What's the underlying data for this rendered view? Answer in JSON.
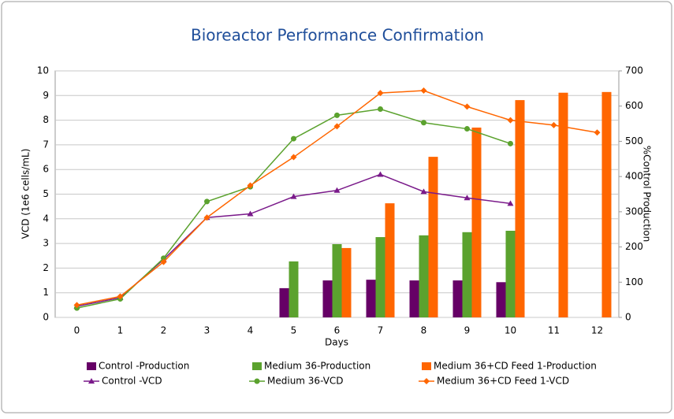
{
  "chart_data": {
    "type": "combo",
    "title": "Bioreactor Performance Confirmation",
    "x_label": "Days",
    "y_label": "VCD (1e6 cells/mL)",
    "y2_label": "%Control Production",
    "categories": [
      "0",
      "1",
      "2",
      "3",
      "4",
      "5",
      "6",
      "7",
      "8",
      "9",
      "10",
      "11",
      "12"
    ],
    "ylim": [
      0,
      10
    ],
    "yticks": [
      0,
      1,
      2,
      3,
      4,
      5,
      6,
      7,
      8,
      9,
      10
    ],
    "y2lim": [
      0,
      700
    ],
    "y2ticks": [
      0,
      100,
      200,
      300,
      400,
      500,
      600,
      700
    ],
    "grid": true,
    "legend": "bottom",
    "series": [
      {
        "name": "Control -Production",
        "type": "bar",
        "axis": "y2",
        "color": "#660066",
        "values": [
          null,
          null,
          null,
          null,
          null,
          83,
          105,
          107,
          105,
          105,
          100,
          null,
          null
        ]
      },
      {
        "name": "Medium 36-Production",
        "type": "bar",
        "axis": "y2",
        "color": "#5ba22e",
        "values": [
          null,
          null,
          null,
          null,
          null,
          159,
          208,
          228,
          233,
          242,
          246,
          null,
          null
        ]
      },
      {
        "name": "Medium 36+CD Feed 1-Production",
        "type": "bar",
        "axis": "y2",
        "color": "#ff6600",
        "values": [
          null,
          null,
          null,
          null,
          null,
          null,
          197,
          324,
          456,
          539,
          617,
          638,
          640
        ]
      },
      {
        "name": "Control -VCD",
        "type": "line",
        "axis": "y",
        "color": "#7a1a8a",
        "marker": "triangle",
        "values": [
          0.45,
          0.8,
          2.35,
          4.05,
          4.2,
          4.9,
          5.15,
          5.8,
          5.1,
          4.85,
          4.62,
          null,
          null
        ]
      },
      {
        "name": "Medium 36-VCD",
        "type": "line",
        "axis": "y",
        "color": "#5ba22e",
        "marker": "circle",
        "values": [
          0.38,
          0.75,
          2.4,
          4.7,
          5.3,
          7.25,
          8.2,
          8.45,
          7.9,
          7.65,
          7.05,
          null,
          null
        ]
      },
      {
        "name": "Medium 36+CD Feed 1-VCD",
        "type": "line",
        "axis": "y",
        "color": "#ff6600",
        "marker": "diamond",
        "values": [
          0.5,
          0.85,
          2.25,
          4.05,
          5.35,
          6.5,
          7.75,
          9.1,
          9.2,
          8.55,
          8.0,
          7.8,
          7.5
        ]
      }
    ]
  }
}
